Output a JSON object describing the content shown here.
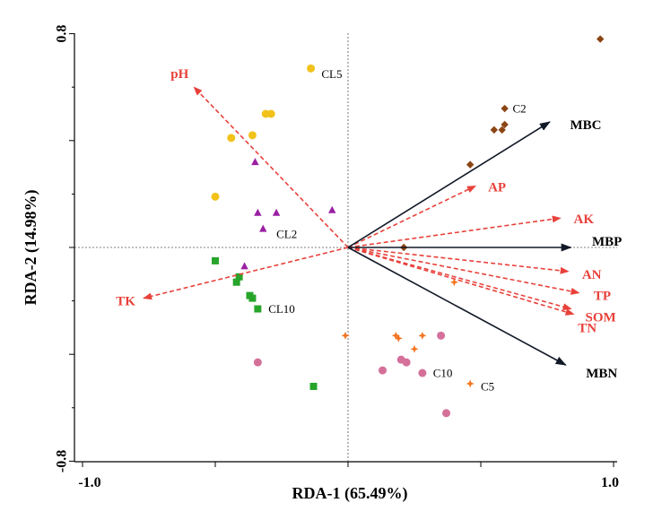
{
  "chart_data": {
    "type": "scatter",
    "xlabel": "RDA-1 (65.49%)",
    "ylabel": "RDA-2 (14.98%)",
    "xlim": [
      -1.0,
      1.0
    ],
    "ylim": [
      -0.8,
      0.8
    ],
    "x_tick_labels": [
      "-1.0",
      "1.0"
    ],
    "y_tick_labels": [
      "0.8",
      "-0.8"
    ],
    "reference_lines": "dotted lines at x = 0 and y = 0",
    "response_vectors": [
      {
        "label": "MBC",
        "x": 0.76,
        "y": 0.47,
        "color": "#111827"
      },
      {
        "label": "MBP",
        "x": 0.84,
        "y": 0.0,
        "color": "#111827"
      },
      {
        "label": "MBN",
        "x": 0.82,
        "y": -0.44,
        "color": "#111827"
      }
    ],
    "explanatory_vectors": [
      {
        "label": "pH",
        "x": -0.58,
        "y": 0.6,
        "color": "#e8413a"
      },
      {
        "label": "TK",
        "x": -0.77,
        "y": -0.19,
        "color": "#e8413a"
      },
      {
        "label": "AP",
        "x": 0.48,
        "y": 0.23,
        "color": "#e8413a"
      },
      {
        "label": "AK",
        "x": 0.8,
        "y": 0.11,
        "color": "#e8413a"
      },
      {
        "label": "AN",
        "x": 0.83,
        "y": -0.09,
        "color": "#e8413a"
      },
      {
        "label": "TP",
        "x": 0.87,
        "y": -0.17,
        "color": "#e8413a"
      },
      {
        "label": "SOM",
        "x": 0.85,
        "y": -0.25,
        "color": "#e8413a"
      },
      {
        "label": "TN",
        "x": 0.84,
        "y": -0.23,
        "color": "#e8413a"
      }
    ],
    "groups": [
      {
        "label": "CL5",
        "marker": "circle",
        "color": "#f2c21b",
        "points": [
          [
            -0.14,
            0.67
          ],
          [
            -0.31,
            0.5
          ],
          [
            -0.29,
            0.5
          ],
          [
            -0.36,
            0.42
          ],
          [
            -0.44,
            0.41
          ],
          [
            -0.5,
            0.19
          ]
        ]
      },
      {
        "label": "CL2",
        "marker": "triangle",
        "color": "#9b1fa3",
        "points": [
          [
            -0.35,
            0.32
          ],
          [
            -0.34,
            0.13
          ],
          [
            -0.27,
            0.13
          ],
          [
            -0.32,
            0.07
          ],
          [
            -0.06,
            0.14
          ],
          [
            -0.39,
            -0.07
          ]
        ]
      },
      {
        "label": "CL10",
        "marker": "square",
        "color": "#27a52b",
        "points": [
          [
            -0.5,
            -0.05
          ],
          [
            -0.41,
            -0.11
          ],
          [
            -0.42,
            -0.13
          ],
          [
            -0.37,
            -0.18
          ],
          [
            -0.36,
            -0.19
          ],
          [
            -0.34,
            -0.23
          ],
          [
            -0.13,
            -0.52
          ]
        ]
      },
      {
        "label": "C2",
        "marker": "diamond",
        "color": "#8b4513",
        "points": [
          [
            0.95,
            0.78
          ],
          [
            0.59,
            0.52
          ],
          [
            0.59,
            0.46
          ],
          [
            0.55,
            0.44
          ],
          [
            0.58,
            0.44
          ],
          [
            0.46,
            0.31
          ],
          [
            0.21,
            0.0
          ]
        ]
      },
      {
        "label": "C10",
        "marker": "circle",
        "color": "#d4709a",
        "points": [
          [
            -0.34,
            -0.43
          ],
          [
            0.35,
            -0.33
          ],
          [
            0.13,
            -0.46
          ],
          [
            0.2,
            -0.42
          ],
          [
            0.22,
            -0.43
          ],
          [
            0.28,
            -0.47
          ],
          [
            0.37,
            -0.62
          ]
        ]
      },
      {
        "label": "C5",
        "marker": "cross",
        "color": "#f4741f",
        "points": [
          [
            -0.01,
            -0.33
          ],
          [
            0.18,
            -0.33
          ],
          [
            0.19,
            -0.34
          ],
          [
            0.28,
            -0.33
          ],
          [
            0.25,
            -0.38
          ],
          [
            0.4,
            -0.13
          ],
          [
            0.46,
            -0.51
          ]
        ]
      }
    ],
    "group_labels": [
      {
        "text": "CL5",
        "x": -0.1,
        "y": 0.65
      },
      {
        "text": "CL2",
        "x": -0.27,
        "y": 0.05
      },
      {
        "text": "CL10",
        "x": -0.3,
        "y": -0.23
      },
      {
        "text": "C2",
        "x": 0.62,
        "y": 0.52
      },
      {
        "text": "C10",
        "x": 0.32,
        "y": -0.47
      },
      {
        "text": "C5",
        "x": 0.5,
        "y": -0.52
      }
    ],
    "grid": false,
    "legend": "none"
  }
}
